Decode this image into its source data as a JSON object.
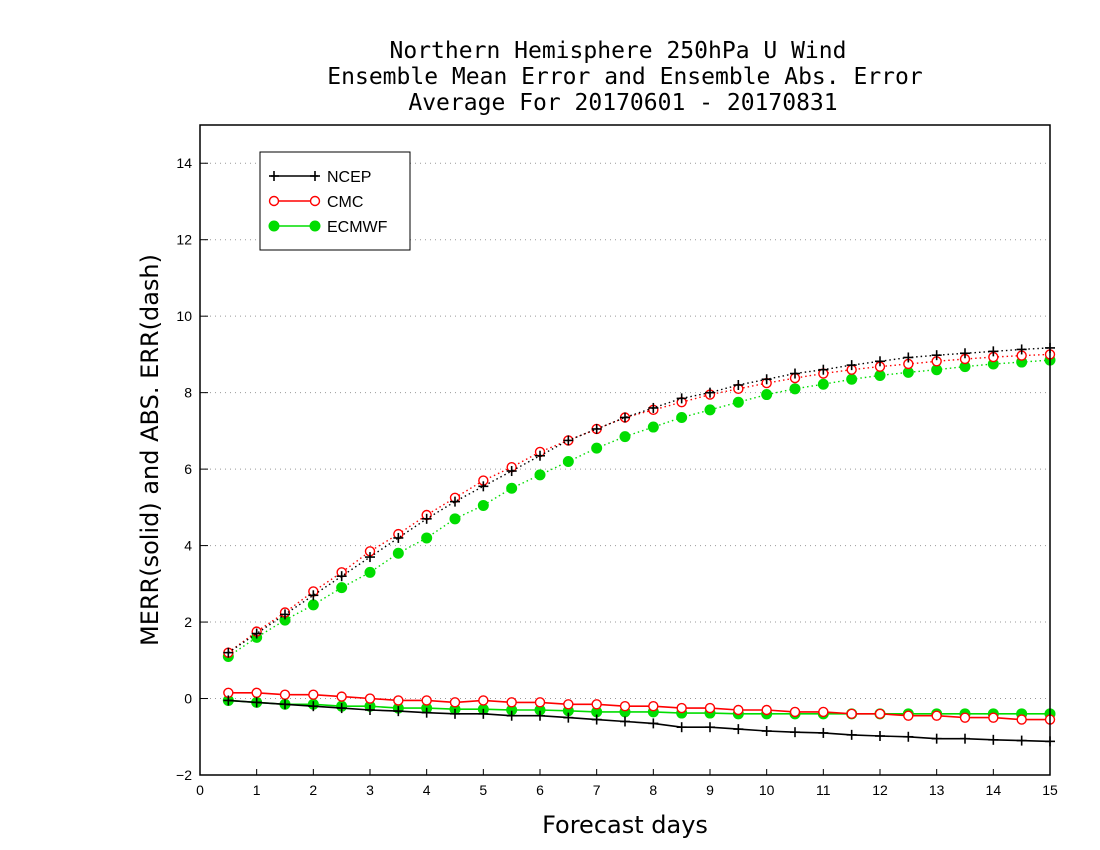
{
  "chart_data": {
    "type": "line",
    "title": [
      "Northern Hemisphere 250hPa U Wind",
      "Ensemble Mean Error and Ensemble Abs. Error",
      "Average For 20170601 - 20170831"
    ],
    "xlabel": "Forecast days",
    "ylabel": "MERR(solid) and ABS. ERR(dash)",
    "xlim": [
      0,
      15
    ],
    "ylim": [
      -2,
      15
    ],
    "xticks": [
      0,
      1,
      2,
      3,
      4,
      5,
      6,
      7,
      8,
      9,
      10,
      11,
      12,
      13,
      14,
      15
    ],
    "yticks": [
      -2,
      0,
      2,
      4,
      6,
      8,
      10,
      12,
      14
    ],
    "grid": "horizontal dotted",
    "legend_position": "top-left",
    "x": [
      0.5,
      1,
      1.5,
      2,
      2.5,
      3,
      3.5,
      4,
      4.5,
      5,
      5.5,
      6,
      6.5,
      7,
      7.5,
      8,
      8.5,
      9,
      9.5,
      10,
      10.5,
      11,
      11.5,
      12,
      12.5,
      13,
      13.5,
      14,
      14.5,
      15
    ],
    "series": [
      {
        "name": "NCEP",
        "color": "#000000",
        "marker": "plus",
        "abs_error": [
          1.2,
          1.7,
          2.2,
          2.7,
          3.2,
          3.7,
          4.2,
          4.7,
          5.15,
          5.55,
          5.95,
          6.35,
          6.75,
          7.05,
          7.35,
          7.6,
          7.85,
          8.0,
          8.2,
          8.35,
          8.5,
          8.6,
          8.72,
          8.82,
          8.92,
          8.98,
          9.03,
          9.08,
          9.13,
          9.17
        ],
        "mean_error": [
          -0.05,
          -0.1,
          -0.15,
          -0.2,
          -0.25,
          -0.3,
          -0.33,
          -0.37,
          -0.4,
          -0.4,
          -0.45,
          -0.45,
          -0.5,
          -0.55,
          -0.6,
          -0.65,
          -0.75,
          -0.75,
          -0.8,
          -0.85,
          -0.88,
          -0.9,
          -0.95,
          -0.98,
          -1.0,
          -1.05,
          -1.05,
          -1.08,
          -1.1,
          -1.12
        ]
      },
      {
        "name": "CMC",
        "color": "#ff0000",
        "marker": "open-circle",
        "abs_error": [
          1.2,
          1.75,
          2.25,
          2.8,
          3.3,
          3.85,
          4.3,
          4.8,
          5.25,
          5.7,
          6.05,
          6.45,
          6.75,
          7.05,
          7.35,
          7.55,
          7.75,
          7.95,
          8.1,
          8.25,
          8.38,
          8.5,
          8.6,
          8.68,
          8.75,
          8.82,
          8.88,
          8.93,
          8.97,
          9.0
        ],
        "mean_error": [
          0.15,
          0.15,
          0.1,
          0.1,
          0.05,
          0.0,
          -0.05,
          -0.05,
          -0.1,
          -0.05,
          -0.1,
          -0.1,
          -0.15,
          -0.15,
          -0.2,
          -0.2,
          -0.25,
          -0.25,
          -0.3,
          -0.3,
          -0.35,
          -0.35,
          -0.4,
          -0.4,
          -0.45,
          -0.45,
          -0.5,
          -0.5,
          -0.55,
          -0.55
        ]
      },
      {
        "name": "ECMWF",
        "color": "#00dd00",
        "marker": "filled-circle",
        "abs_error": [
          1.1,
          1.6,
          2.05,
          2.45,
          2.9,
          3.3,
          3.8,
          4.2,
          4.7,
          5.05,
          5.5,
          5.85,
          6.2,
          6.55,
          6.85,
          7.1,
          7.35,
          7.55,
          7.75,
          7.95,
          8.1,
          8.22,
          8.35,
          8.45,
          8.53,
          8.6,
          8.68,
          8.75,
          8.8,
          8.85
        ],
        "mean_error": [
          -0.05,
          -0.1,
          -0.15,
          -0.15,
          -0.2,
          -0.2,
          -0.25,
          -0.25,
          -0.28,
          -0.28,
          -0.3,
          -0.3,
          -0.32,
          -0.35,
          -0.35,
          -0.35,
          -0.38,
          -0.38,
          -0.4,
          -0.4,
          -0.4,
          -0.4,
          -0.4,
          -0.4,
          -0.4,
          -0.4,
          -0.4,
          -0.4,
          -0.4,
          -0.4
        ]
      }
    ]
  }
}
